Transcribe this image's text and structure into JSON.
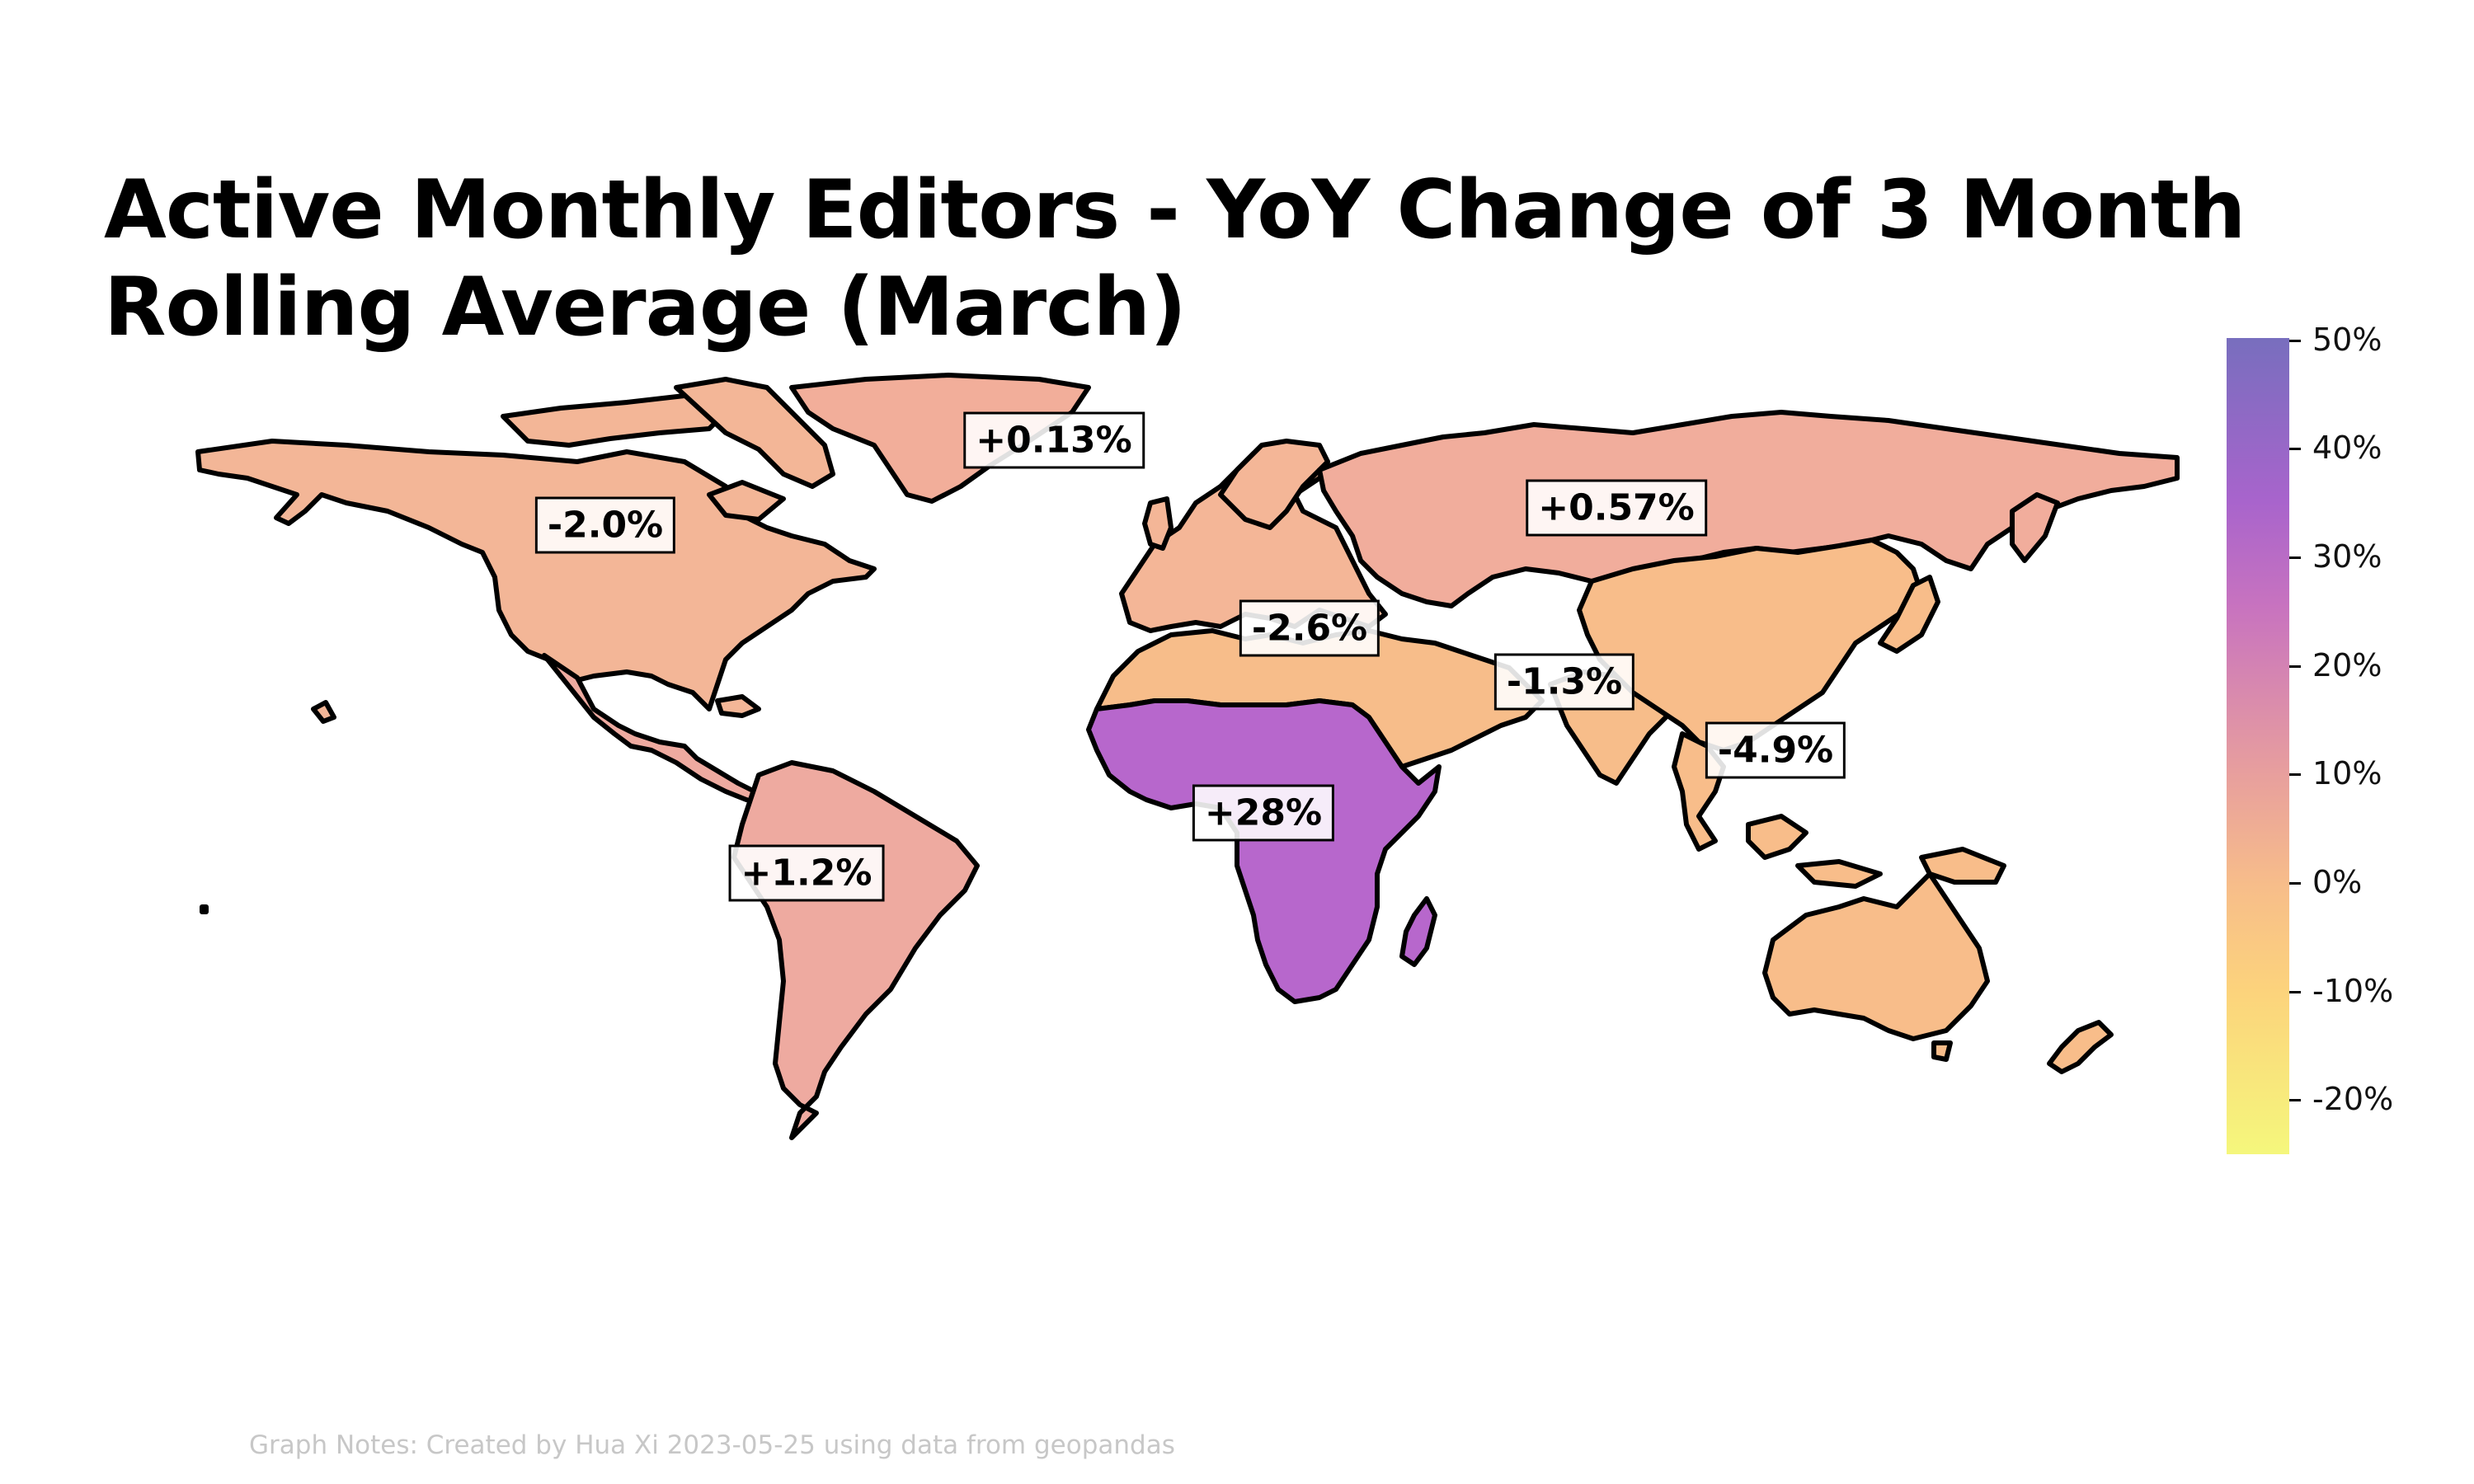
{
  "title": "Active Monthly Editors - YoY Change of 3 Month Rolling Average (March)",
  "notes": "Graph Notes: Created by Hua Xi 2023-05-25 using data from geopandas",
  "colorbar": {
    "ticks": [
      "50%",
      "40%",
      "30%",
      "20%",
      "10%",
      "0%",
      "-10%",
      "-20%"
    ],
    "range": [
      -25,
      50
    ],
    "colormap": "plasma_r (light)"
  },
  "chart_data": {
    "type": "choropleth",
    "regions": [
      {
        "name": "North America",
        "label": "-2.0%",
        "value": -2.0,
        "color": "#f3b697"
      },
      {
        "name": "Greenland",
        "label": "+0.13%",
        "value": 0.13,
        "color": "#f2ae9a"
      },
      {
        "name": "Latin America",
        "label": "+1.2%",
        "value": 1.2,
        "color": "#eeaaa0"
      },
      {
        "name": "Russia",
        "label": "+0.57%",
        "value": 0.57,
        "color": "#f1ad9c"
      },
      {
        "name": "Europe",
        "label": "-2.6%",
        "value": -2.6,
        "color": "#f4b697"
      },
      {
        "name": "Middle East",
        "label": "-1.3%",
        "value": -1.3,
        "color": "#f7bd8a"
      },
      {
        "name": "Asia Pacific",
        "label": "-4.9%",
        "value": -4.9,
        "color": "#f8bd8a"
      },
      {
        "name": "Sub-Saharan Africa",
        "label": "+28%",
        "value": 28,
        "color": "#b767cc"
      }
    ]
  }
}
